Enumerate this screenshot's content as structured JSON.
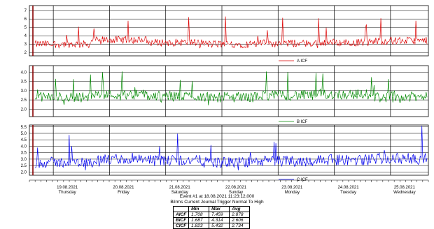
{
  "chart_data": [
    {
      "type": "line",
      "series": [
        {
          "name": "A ICF",
          "color": "#dd0000"
        }
      ],
      "yticks": [
        "7",
        "6",
        "5",
        "4",
        "3",
        "2"
      ],
      "ylim": [
        1.6,
        7.6
      ],
      "base": 3.0,
      "noise": 0.45,
      "spike": 3.4,
      "center_shift": [
        0.0,
        0.5,
        0.2,
        0.0,
        0.1,
        0.2,
        0.4
      ]
    },
    {
      "type": "line",
      "series": [
        {
          "name": "B ICF",
          "color": "#008800"
        }
      ],
      "yticks": [
        "4.0",
        "3.5",
        "3.0",
        "2.5",
        "2.0"
      ],
      "ylim": [
        1.6,
        4.35
      ],
      "base": 2.65,
      "noise": 0.28,
      "spike": 1.3,
      "center_shift": [
        0.0,
        0.15,
        0.05,
        0.0,
        0.1,
        0.15,
        0.0
      ]
    },
    {
      "type": "line",
      "series": [
        {
          "name": "C ICF",
          "color": "#0000ee"
        }
      ],
      "yticks": [
        "5.5",
        "5.0",
        "4.5",
        "4.0",
        "3.5",
        "3.0",
        "2.5",
        "2.0"
      ],
      "ylim": [
        1.75,
        5.65
      ],
      "base": 2.75,
      "noise": 0.42,
      "spike": 2.6,
      "center_shift": [
        0.0,
        0.2,
        0.15,
        0.0,
        0.1,
        0.2,
        0.3
      ]
    }
  ],
  "x_axis": {
    "days": [
      {
        "date": "19.08.2021",
        "weekday": "Thursday"
      },
      {
        "date": "20.08.2021",
        "weekday": "Friday"
      },
      {
        "date": "21.08.2021",
        "weekday": "Saturday"
      },
      {
        "date": "22.08.2021",
        "weekday": "Sunday"
      },
      {
        "date": "23.08.2021",
        "weekday": "Monday"
      },
      {
        "date": "24.08.2021",
        "weekday": "Tuesday"
      },
      {
        "date": "25.08.2021",
        "weekday": "Wednesday"
      }
    ]
  },
  "caption": {
    "line1": "Event #1 at 18.08.2021 11:23:12,000",
    "line2": "Bilrms Current Journal Trigger Normal To High"
  },
  "stats": {
    "headers": [
      "",
      "Min",
      "Max",
      "Avg"
    ],
    "rows": [
      {
        "label": "AICF",
        "min": "1.708",
        "max": "7.459",
        "avg": "2.878"
      },
      {
        "label": "BICF",
        "min": "1.687",
        "max": "4.314",
        "avg": "2.606"
      },
      {
        "label": "CICF",
        "min": "1.823",
        "max": "5.432",
        "avg": "2.734"
      }
    ]
  },
  "colors": {
    "trigger_line": "#880000",
    "grid": "#000000",
    "mean": "#ffffff"
  }
}
